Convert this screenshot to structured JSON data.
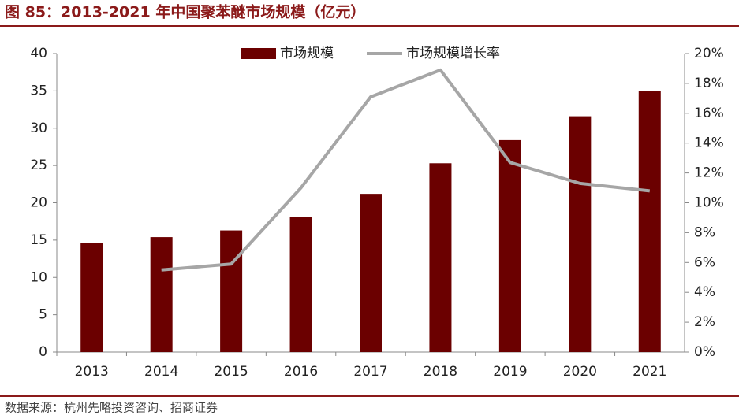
{
  "title": "图 85：2013-2021 年中国聚苯醚市场规模（亿元）",
  "source": "数据来源：杭州先略投资咨询、招商证券",
  "chart_data": {
    "type": "bar",
    "categories": [
      "2013",
      "2014",
      "2015",
      "2016",
      "2017",
      "2018",
      "2019",
      "2020",
      "2021"
    ],
    "series": [
      {
        "name": "市场规模",
        "type": "bar",
        "color": "#6b0000",
        "values": [
          14.6,
          15.4,
          16.3,
          18.1,
          21.2,
          25.3,
          28.4,
          31.6,
          35.0
        ]
      },
      {
        "name": "市场规模增长率",
        "type": "line",
        "axis": "y2",
        "color": "#a6a6a6",
        "values": [
          null,
          5.5,
          5.9,
          11.0,
          17.1,
          18.9,
          12.7,
          11.3,
          10.8
        ]
      }
    ],
    "ylim": [
      0,
      40
    ],
    "yticks": [
      0,
      5,
      10,
      15,
      20,
      25,
      30,
      35,
      40
    ],
    "y2lim": [
      0,
      20
    ],
    "y2ticks": [
      {
        "value": 0,
        "label": "0%"
      },
      {
        "value": 2,
        "label": "2%"
      },
      {
        "value": 4,
        "label": "4%"
      },
      {
        "value": 6,
        "label": "6%"
      },
      {
        "value": 8,
        "label": "8%"
      },
      {
        "value": 10,
        "label": "10%"
      },
      {
        "value": 12,
        "label": "12%"
      },
      {
        "value": 14,
        "label": "14%"
      },
      {
        "value": 16,
        "label": "16%"
      },
      {
        "value": 18,
        "label": "18%"
      },
      {
        "value": 20,
        "label": "20%"
      }
    ],
    "legend": "top"
  }
}
